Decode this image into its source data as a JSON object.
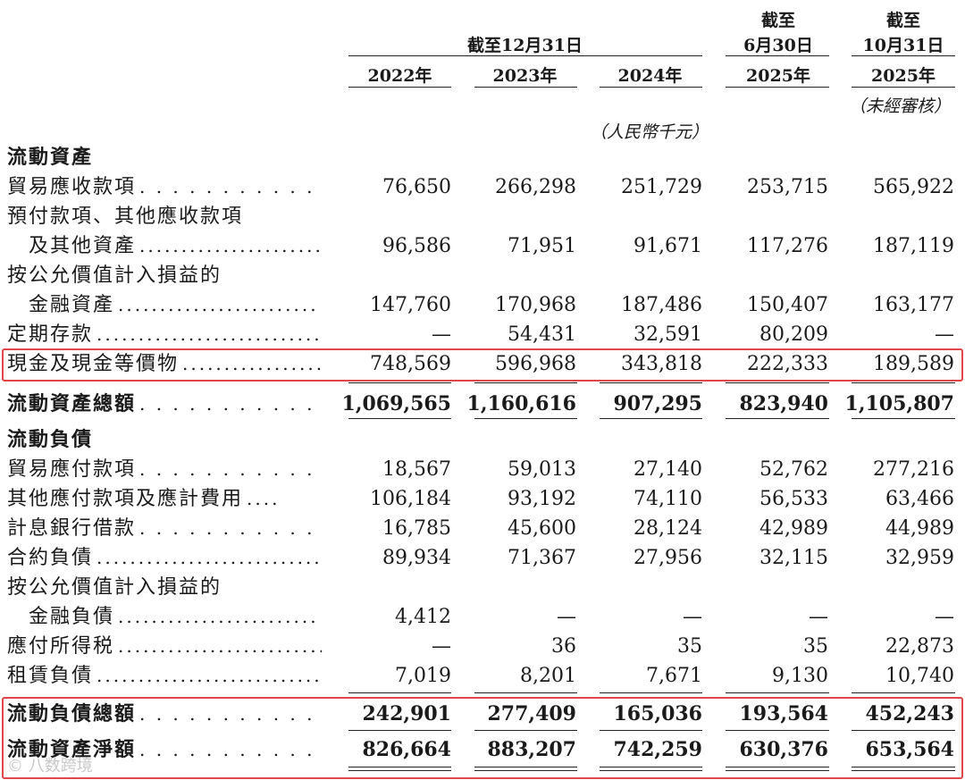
{
  "header": {
    "group_label": "截至12月31日",
    "col_jun": [
      "截至",
      "6月30日"
    ],
    "col_oct": [
      "截至",
      "10月31日"
    ],
    "years": [
      "2022年",
      "2023年",
      "2024年",
      "2025年",
      "2025年"
    ],
    "unaudited": "（未經審核）",
    "unit": "（人民幣千元）"
  },
  "rows": [
    {
      "label": "流動資產",
      "type": "section"
    },
    {
      "label": "貿易應收款項",
      "leader": ". . . . . . . . . . . . . .",
      "values": [
        "76,650",
        "266,298",
        "251,729",
        "253,715",
        "565,922"
      ]
    },
    {
      "label": "預付款項、其他應收款項",
      "type": "wrap"
    },
    {
      "label": "及其他資產",
      "indent": true,
      "leader": "........................",
      "values": [
        "96,586",
        "71,951",
        "91,671",
        "117,276",
        "187,119"
      ]
    },
    {
      "label": "按公允價值計入損益的",
      "type": "wrap"
    },
    {
      "label": "金融資產",
      "indent": true,
      "leader": "........................",
      "values": [
        "147,760",
        "170,968",
        "187,486",
        "150,407",
        "163,177"
      ]
    },
    {
      "label": "定期存款",
      "leader": "................................",
      "values": [
        "—",
        "54,431",
        "32,591",
        "80,209",
        "—"
      ]
    },
    {
      "label": "現金及現金等價物",
      "leader": "........................",
      "values": [
        "748,569",
        "596,968",
        "343,818",
        "222,333",
        "189,589"
      ]
    },
    {
      "label": "流動資產總額",
      "leader": ". . . . . . . . . . . . . . . .",
      "bold": true,
      "values": [
        "1,069,565",
        "1,160,616",
        "907,295",
        "823,940",
        "1,105,807"
      ]
    },
    {
      "label": "流動負債",
      "type": "section"
    },
    {
      "label": "貿易應付款項",
      "leader": ". . . . . . . . . . . . . .",
      "values": [
        "18,567",
        "59,013",
        "27,140",
        "52,762",
        "277,216"
      ]
    },
    {
      "label": "其他應付款項及應計費用",
      "leader": "....",
      "values": [
        "106,184",
        "93,192",
        "74,110",
        "56,533",
        "63,466"
      ]
    },
    {
      "label": "計息銀行借款",
      "leader": ". . . . . . . . . . . . . .",
      "values": [
        "16,785",
        "45,600",
        "28,124",
        "42,989",
        "44,989"
      ]
    },
    {
      "label": "合約負債",
      "leader": "................................",
      "values": [
        "89,934",
        "71,367",
        "27,956",
        "32,115",
        "32,959"
      ]
    },
    {
      "label": "按公允價值計入損益的",
      "type": "wrap"
    },
    {
      "label": "金融負債",
      "indent": true,
      "leader": "........................",
      "values": [
        "4,412",
        "—",
        "—",
        "—",
        "—"
      ]
    },
    {
      "label": "應付所得税",
      "leader": "............................",
      "values": [
        "—",
        "36",
        "35",
        "35",
        "22,873"
      ]
    },
    {
      "label": "租賃負債",
      "leader": "................................",
      "values": [
        "7,019",
        "8,201",
        "7,671",
        "9,130",
        "10,740"
      ]
    },
    {
      "label": "流動負債總額",
      "leader": ". . . . . . . . . . . . . . . .",
      "bold": true,
      "values": [
        "242,901",
        "277,409",
        "165,036",
        "193,564",
        "452,243"
      ]
    },
    {
      "label": "流動資產淨額",
      "leader": ". . . . . . . . . . . . . . . .",
      "bold": true,
      "values": [
        "826,664",
        "883,207",
        "742,259",
        "630,376",
        "653,564"
      ]
    }
  ],
  "watermark": "©  八数跨境",
  "highlight_color": "#e0454a"
}
